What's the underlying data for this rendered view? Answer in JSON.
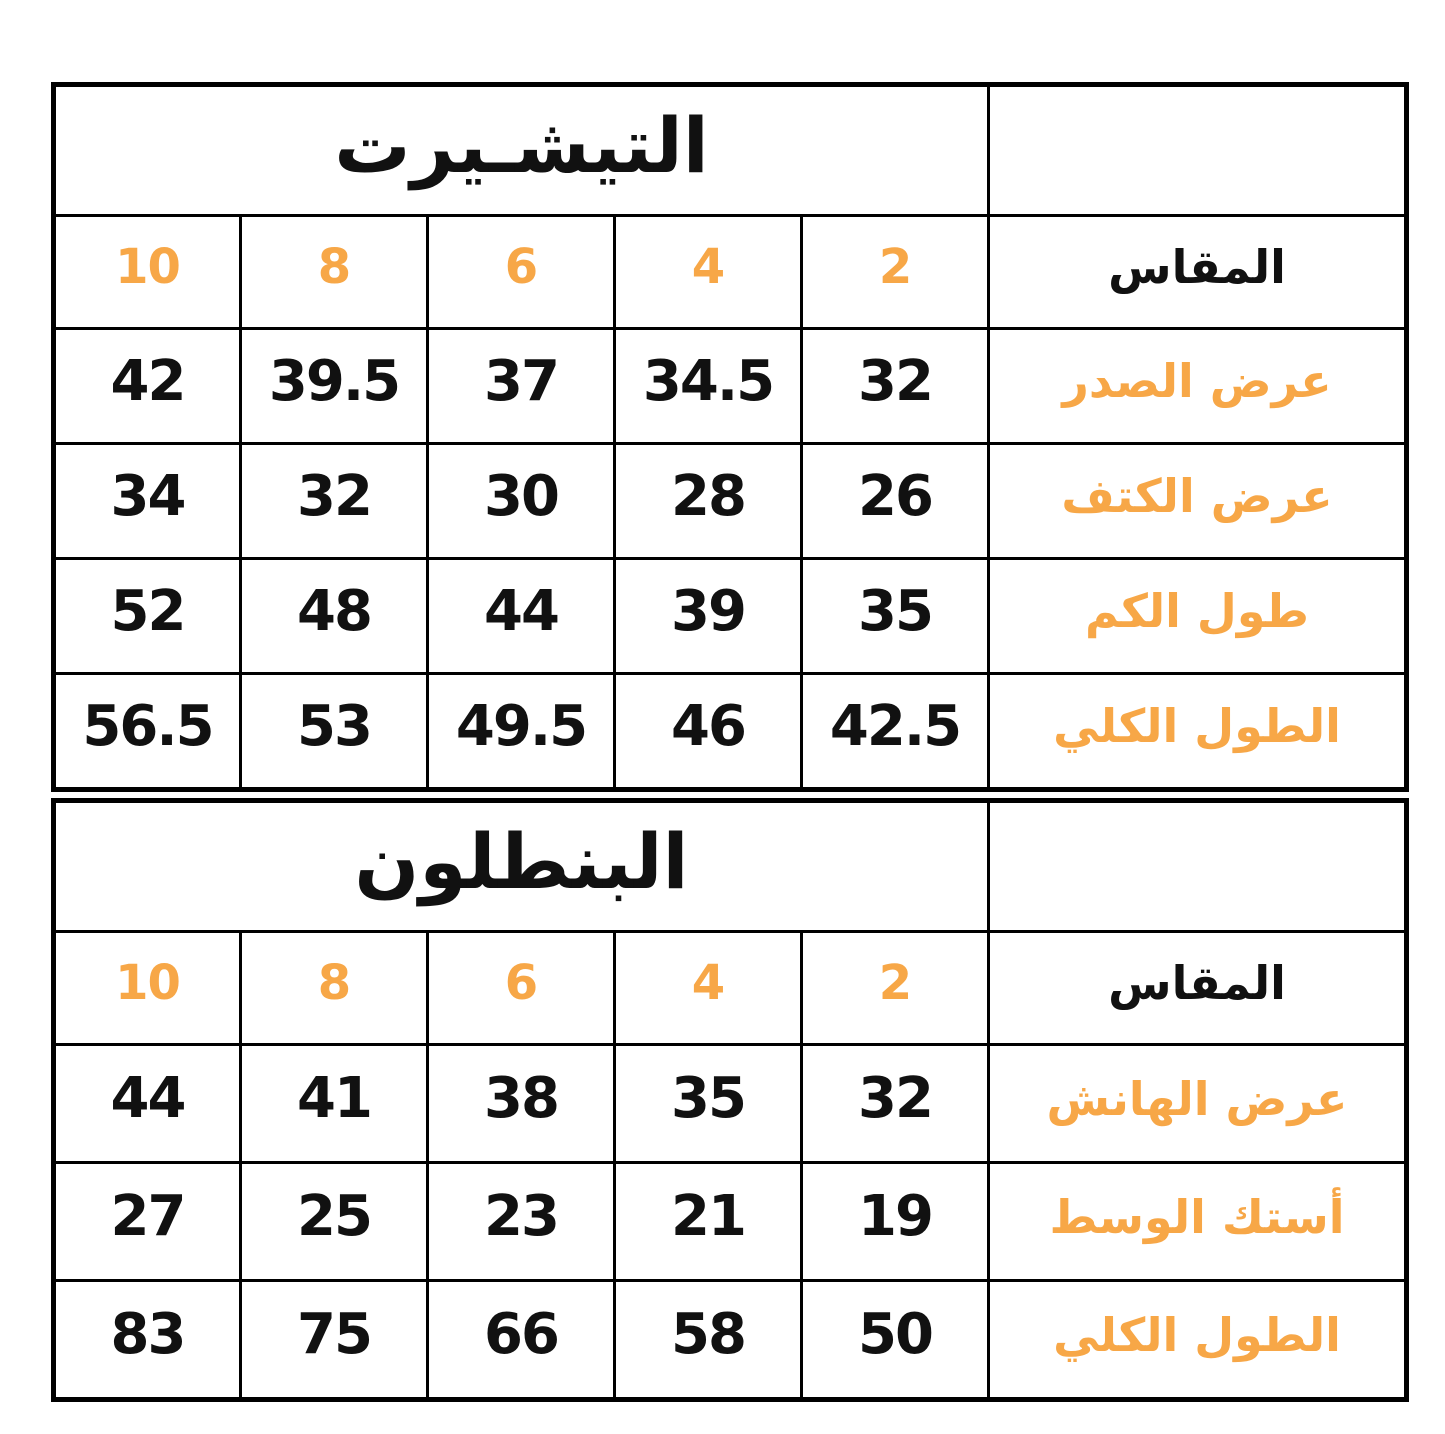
{
  "page": {
    "background": "#ffffff"
  },
  "colors": {
    "accent_orange": "#F7A747",
    "text_black": "#111111",
    "border_black": "#000000"
  },
  "tables": [
    {
      "id": "tshirt",
      "title": "التيشـيرت",
      "size_header_label": "المقاس",
      "sizes": [
        "10",
        "8",
        "6",
        "4",
        "2"
      ],
      "rows": [
        {
          "label": "عرض الصدر",
          "values": [
            "42",
            "39.5",
            "37",
            "34.5",
            "32"
          ]
        },
        {
          "label": "عرض الكتف",
          "values": [
            "34",
            "32",
            "30",
            "28",
            "26"
          ]
        },
        {
          "label": "طول الكم",
          "values": [
            "52",
            "48",
            "44",
            "39",
            "35"
          ]
        },
        {
          "label": "الطول الكلي",
          "values": [
            "56.5",
            "53",
            "49.5",
            "46",
            "42.5"
          ]
        }
      ]
    },
    {
      "id": "pants",
      "title": "البنطلون",
      "size_header_label": "المقاس",
      "sizes": [
        "10",
        "8",
        "6",
        "4",
        "2"
      ],
      "rows": [
        {
          "label": "عرض الهانش",
          "values": [
            "44",
            "41",
            "38",
            "35",
            "32"
          ]
        },
        {
          "label": "أستك الوسط",
          "values": [
            "27",
            "25",
            "23",
            "21",
            "19"
          ]
        },
        {
          "label": "الطول الكلي",
          "values": [
            "83",
            "75",
            "66",
            "58",
            "50"
          ]
        }
      ]
    }
  ]
}
